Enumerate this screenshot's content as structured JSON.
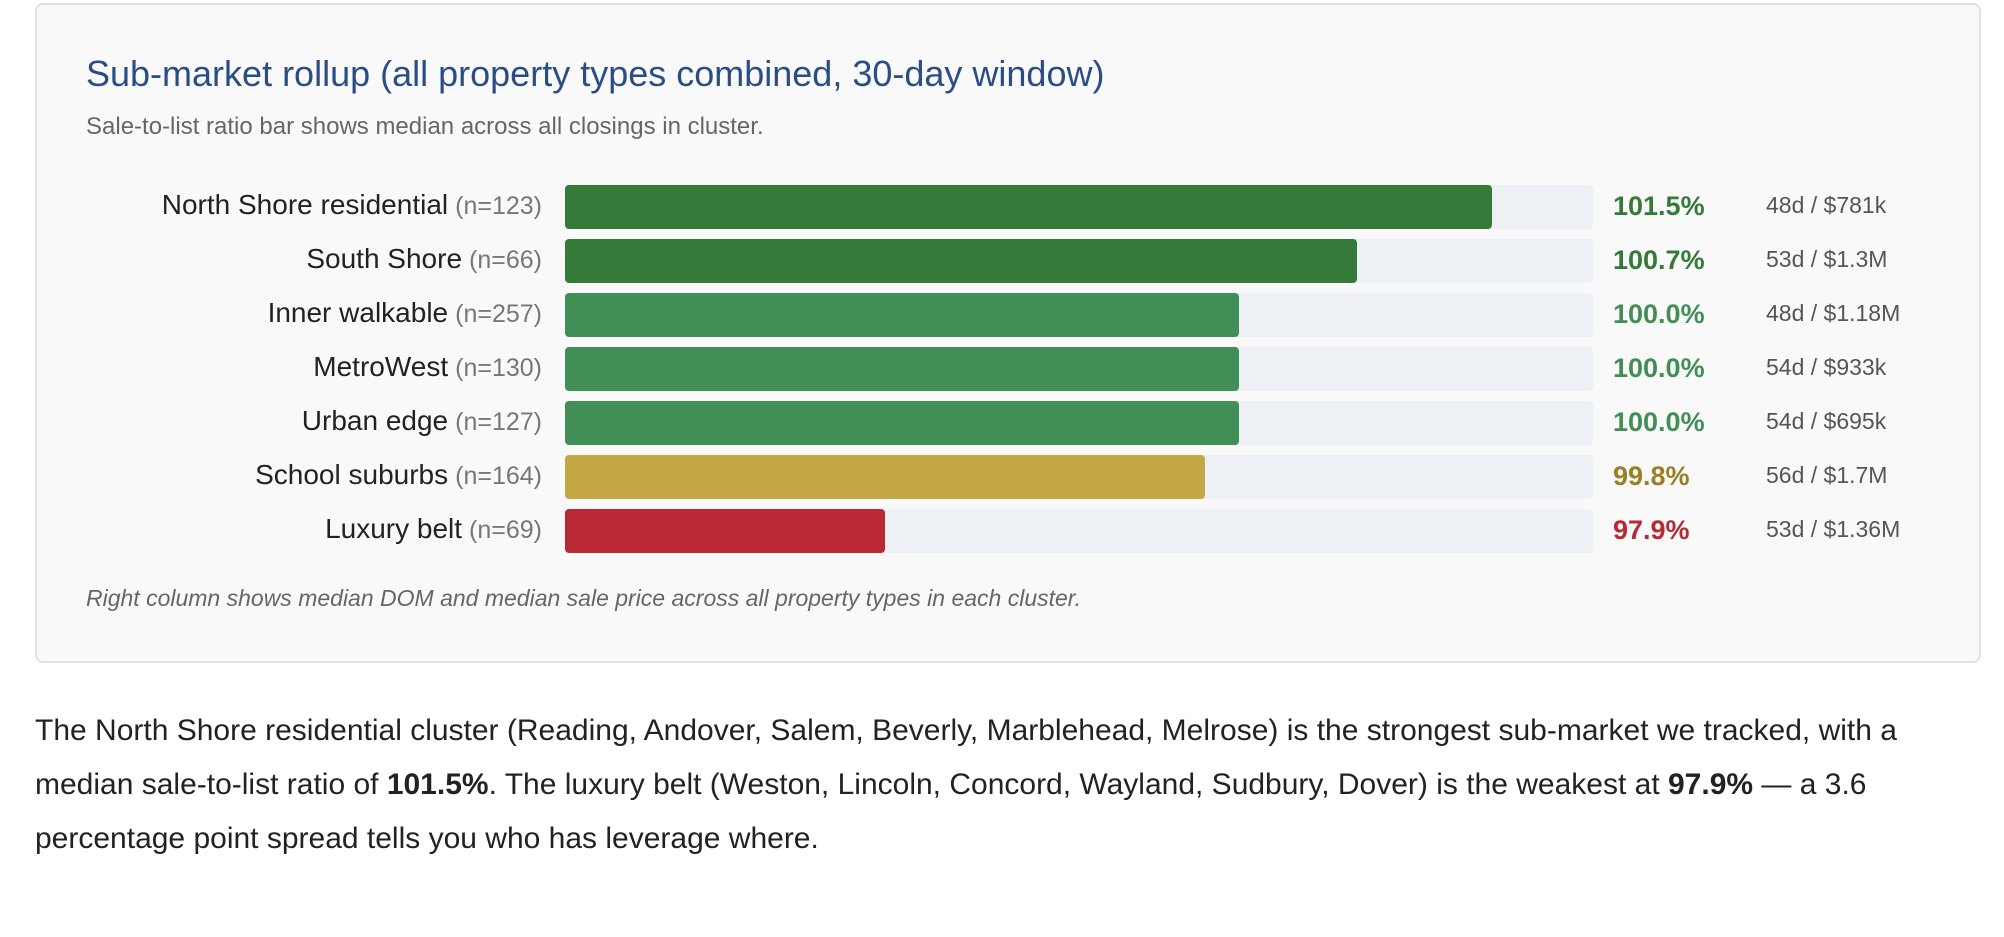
{
  "chart_data": {
    "type": "bar",
    "orientation": "horizontal",
    "title": "Sub-market rollup (all property types combined, 30-day window)",
    "subtitle": "Sale-to-list ratio bar shows median across all closings in cluster.",
    "footnote": "Right column shows median DOM and median sale price across all property types in each cluster.",
    "xlim": [
      96,
      102.1
    ],
    "categories": [
      "North Shore residential",
      "South Shore",
      "Inner walkable",
      "MetroWest",
      "Urban edge",
      "School suburbs",
      "Luxury belt"
    ],
    "rows": [
      {
        "name": "North Shore residential",
        "n": "(n=123)",
        "value": 101.5,
        "value_label": "101.5%",
        "meta": "48d / $781k",
        "color": "#357a38",
        "text_color": "#357a38"
      },
      {
        "name": "South Shore",
        "n": "(n=66)",
        "value": 100.7,
        "value_label": "100.7%",
        "meta": "53d / $1.3M",
        "color": "#357a38",
        "text_color": "#357a38"
      },
      {
        "name": "Inner walkable",
        "n": "(n=257)",
        "value": 100.0,
        "value_label": "100.0%",
        "meta": "48d / $1.18M",
        "color": "#428e57",
        "text_color": "#428e57"
      },
      {
        "name": "MetroWest",
        "n": "(n=130)",
        "value": 100.0,
        "value_label": "100.0%",
        "meta": "54d / $933k",
        "color": "#428e57",
        "text_color": "#428e57"
      },
      {
        "name": "Urban edge",
        "n": "(n=127)",
        "value": 100.0,
        "value_label": "100.0%",
        "meta": "54d / $695k",
        "color": "#428e57",
        "text_color": "#428e57"
      },
      {
        "name": "School suburbs",
        "n": "(n=164)",
        "value": 99.8,
        "value_label": "99.8%",
        "meta": "56d / $1.7M",
        "color": "#c5a846",
        "text_color": "#9a8024"
      },
      {
        "name": "Luxury belt",
        "n": "(n=69)",
        "value": 97.9,
        "value_label": "97.9%",
        "meta": "53d / $1.36M",
        "color": "#b82934",
        "text_color": "#b82934"
      }
    ]
  },
  "paragraph": {
    "part1": "The North Shore residential cluster (Reading, Andover, Salem, Beverly, Marblehead, Melrose) is the strongest sub-market we tracked, with a median sale-to-list ratio of ",
    "strong1": "101.5%",
    "part2": ". The luxury belt (Weston, Lincoln, Concord, Wayland, Sudbury, Dover) is the weakest at ",
    "strong2": "97.9%",
    "part3": " — a 3.6 percentage point spread tells you who has leverage where."
  }
}
